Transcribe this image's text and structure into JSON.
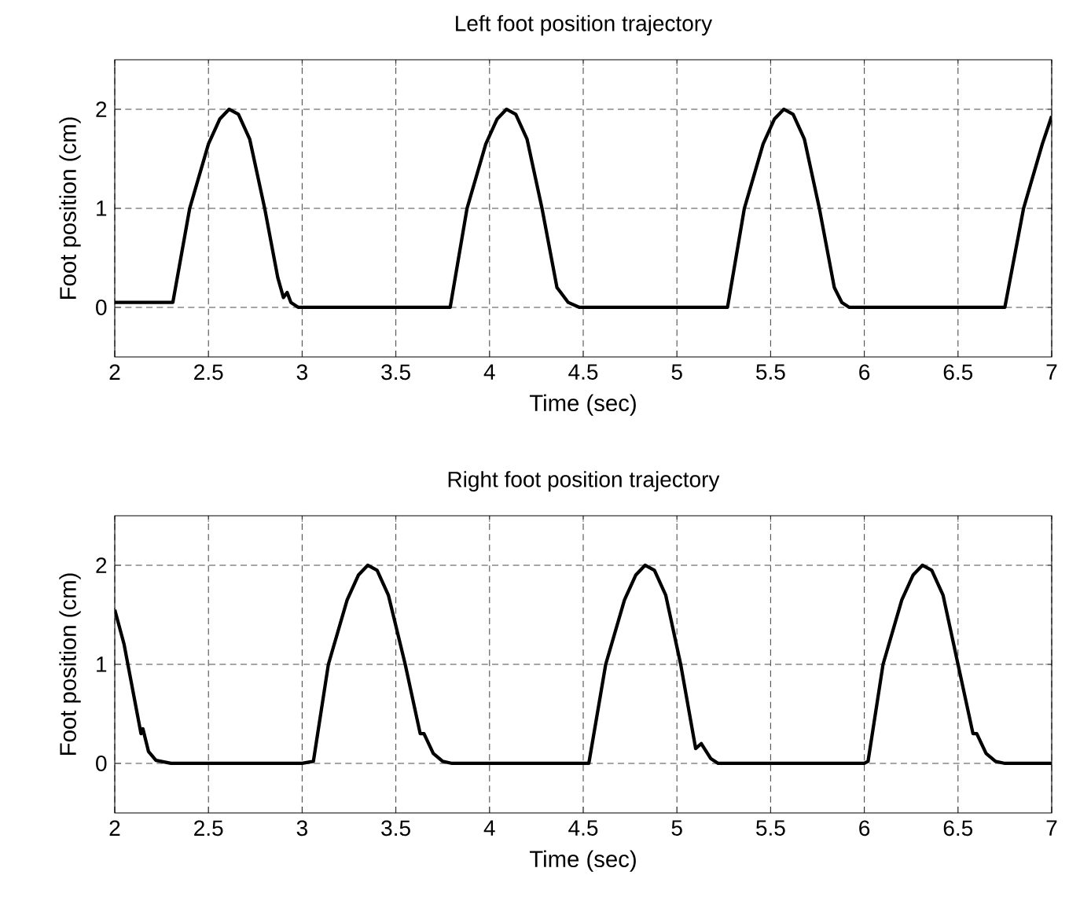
{
  "chart_data": [
    {
      "type": "line",
      "title": "Left foot position trajectory",
      "xlabel": "Time (sec)",
      "ylabel": "Foot position (cm)",
      "xlim": [
        2,
        7
      ],
      "ylim": [
        -0.5,
        2.5
      ],
      "xticks": [
        2,
        2.5,
        3,
        3.5,
        4,
        4.5,
        5,
        5.5,
        6,
        6.5,
        7
      ],
      "yticks": [
        0,
        1,
        2
      ],
      "grid": true,
      "line_style": "solid",
      "marker": "none",
      "series": [
        {
          "color": "#000000",
          "x": [
            2,
            2.31,
            2.4,
            2.5,
            2.56,
            2.61,
            2.66,
            2.72,
            2.8,
            2.87,
            2.9,
            2.92,
            2.94,
            2.98,
            3.5,
            3.79,
            3.88,
            3.98,
            4.04,
            4.09,
            4.14,
            4.2,
            4.28,
            4.36,
            4.38,
            4.42,
            4.48,
            5.27,
            5.36,
            5.46,
            5.52,
            5.57,
            5.62,
            5.68,
            5.76,
            5.84,
            5.88,
            5.92,
            6.75,
            6.85,
            6.95,
            7
          ],
          "values": [
            0.05,
            0.05,
            1.0,
            1.65,
            1.9,
            2.0,
            1.95,
            1.7,
            1.0,
            0.3,
            0.1,
            0.15,
            0.05,
            0.0,
            0.0,
            0.0,
            1.0,
            1.65,
            1.9,
            2.0,
            1.95,
            1.7,
            1.0,
            0.2,
            0.15,
            0.05,
            0.0,
            0.0,
            1.0,
            1.65,
            1.9,
            2.0,
            1.95,
            1.7,
            1.0,
            0.2,
            0.05,
            0.0,
            0.0,
            1.0,
            1.65,
            1.93
          ]
        }
      ]
    },
    {
      "type": "line",
      "title": "Right foot position trajectory",
      "xlabel": "Time (sec)",
      "ylabel": "Foot position (cm)",
      "xlim": [
        2,
        7
      ],
      "ylim": [
        -0.5,
        2.5
      ],
      "xticks": [
        2,
        2.5,
        3,
        3.5,
        4,
        4.5,
        5,
        5.5,
        6,
        6.5,
        7
      ],
      "yticks": [
        0,
        1,
        2
      ],
      "grid": true,
      "line_style": "solid",
      "marker": "none",
      "series": [
        {
          "color": "#000000",
          "x": [
            2,
            2.05,
            2.1,
            2.14,
            2.15,
            2.18,
            2.22,
            2.3,
            3.0,
            3.06,
            3.14,
            3.24,
            3.3,
            3.35,
            3.4,
            3.46,
            3.55,
            3.63,
            3.65,
            3.7,
            3.75,
            3.8,
            4.53,
            4.62,
            4.72,
            4.78,
            4.83,
            4.88,
            4.94,
            5.02,
            5.1,
            5.13,
            5.18,
            5.22,
            6.0,
            6.02,
            6.1,
            6.2,
            6.26,
            6.31,
            6.36,
            6.42,
            6.5,
            6.58,
            6.6,
            6.65,
            6.7,
            6.75,
            7
          ],
          "values": [
            1.55,
            1.2,
            0.7,
            0.3,
            0.35,
            0.12,
            0.03,
            0.0,
            0.0,
            0.02,
            1.0,
            1.65,
            1.9,
            2.0,
            1.95,
            1.7,
            1.0,
            0.3,
            0.3,
            0.1,
            0.02,
            0.0,
            0.0,
            1.0,
            1.65,
            1.9,
            2.0,
            1.95,
            1.7,
            1.0,
            0.15,
            0.2,
            0.05,
            0.0,
            0.0,
            0.02,
            1.0,
            1.65,
            1.9,
            2.0,
            1.95,
            1.7,
            1.0,
            0.3,
            0.3,
            0.1,
            0.02,
            0.0,
            0.0
          ]
        }
      ]
    }
  ]
}
